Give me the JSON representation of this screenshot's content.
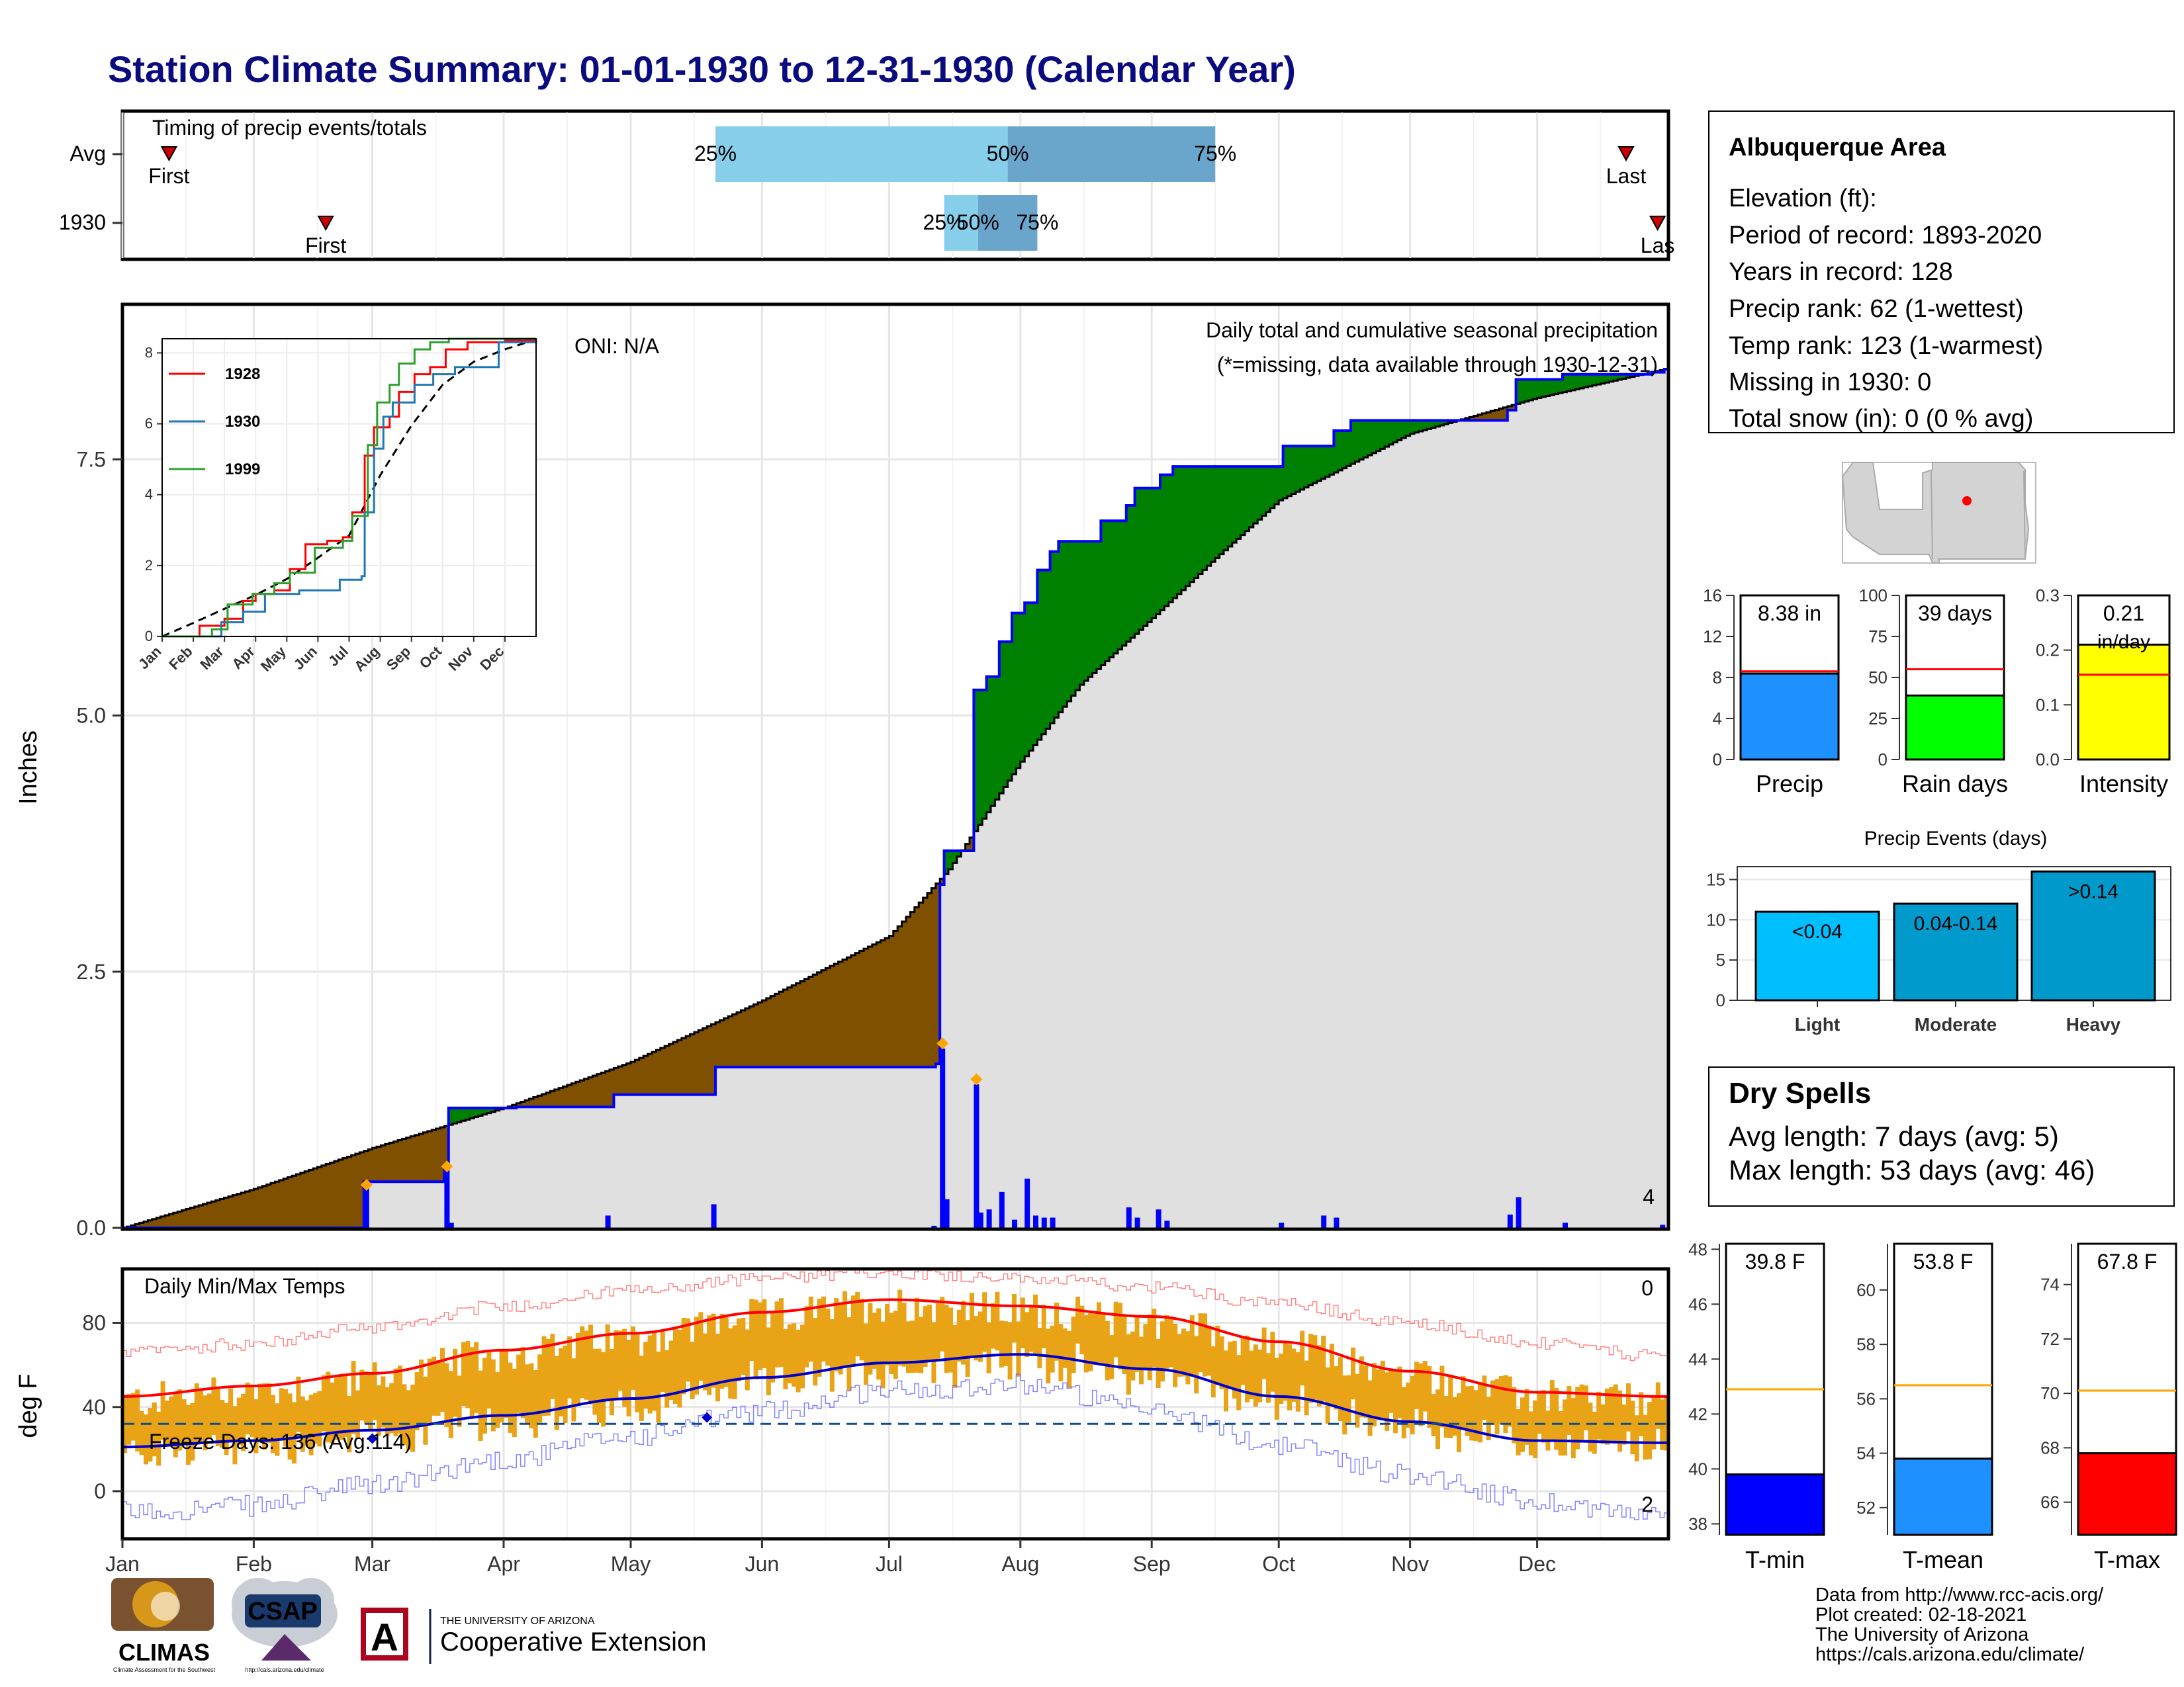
{
  "colors": {
    "title": "#0b0b80",
    "brown_deficit": "#7f5000",
    "green_surplus": "#008000",
    "normal_fill": "#e0e0e0",
    "precip_blue": "#0000ff",
    "light_blue": "#87ceeb",
    "mid_blue": "#6aa6cc",
    "orange_marker": "#ffa500",
    "temp_bar": "#e8a317",
    "red_line": "#ff0000",
    "blue_line": "#0000cd",
    "dry_spells_text": "#a52a2a",
    "precip_bar": "#1e90ff",
    "rain_days_bar": "#00ff00",
    "intensity_bar": "#ffff00",
    "light_bar": "#00bfff",
    "moderate_bar": "#009acd",
    "heavy_bar": "#0099cc",
    "tmin_bar": "#0000ff",
    "tmean_bar": "#1e90ff",
    "tmax_bar": "#ff0000"
  },
  "page": {
    "title": "Station Climate Summary: 01-01-1930 to 12-31-1930 (Calendar Year)",
    "footer": {
      "line1": "Data from http://www.rcc-acis.org/",
      "line2": "Plot created: 02-18-2021",
      "line3": "The University of Arizona",
      "line4": "https://cals.arizona.edu/climate/"
    },
    "logos": {
      "climas": "CLIMAS",
      "climas_sub": "Climate Assessment for the Southwest",
      "csap": "CSAP",
      "csap_url": "http://cals.arizona.edu/climate",
      "ua_small": "THE UNIVERSITY OF ARIZONA",
      "ua_big": "Cooperative Extension",
      "ua_letter": "A"
    }
  },
  "chart_data": [
    {
      "id": "timing",
      "type": "bar",
      "title": "Timing of precip events/totals",
      "categories": [
        "Avg",
        "1930"
      ],
      "first_label": "First",
      "last_label": "Last",
      "last_label_clipped": "Las",
      "pct_labels": [
        "25%",
        "50%",
        "75%"
      ],
      "avg": {
        "first": "1930-01-12",
        "p25": "1930-05-21",
        "p50": "1930-07-29",
        "p75": "1930-09-16",
        "last": "1930-12-22"
      },
      "y1930": {
        "first": "1930-02-18",
        "p25": "1930-07-14",
        "p50": "1930-07-22",
        "p75": "1930-08-05",
        "last": "1930-12-31"
      }
    },
    {
      "id": "precip",
      "type": "area",
      "title": "Daily total and cumulative seasonal precipitation",
      "subtitle": "(*=missing, data available through 1930-12-31)",
      "oni": "ONI: N/A",
      "ylabel": "Inches",
      "ylim": [
        0,
        9.0
      ],
      "yticks": [
        0.0,
        2.5,
        5.0,
        7.5
      ],
      "ytick_labels": [
        "0.0",
        "2.5",
        "5.0",
        "7.5"
      ],
      "months": [
        "Jan",
        "Feb",
        "Mar",
        "Apr",
        "May",
        "Jun",
        "Jul",
        "Aug",
        "Sep",
        "Oct",
        "Nov",
        "Dec"
      ],
      "cumulative_1930": [
        [
          "1930-01-01",
          0.0
        ],
        [
          "1930-02-26",
          0.0
        ],
        [
          "1930-02-27",
          0.45
        ],
        [
          "1930-03-17",
          0.45
        ],
        [
          "1930-03-18",
          0.6
        ],
        [
          "1930-03-19",
          1.17
        ],
        [
          "1930-04-03",
          1.17
        ],
        [
          "1930-04-04",
          1.18
        ],
        [
          "1930-04-26",
          1.18
        ],
        [
          "1930-04-27",
          1.3
        ],
        [
          "1930-05-20",
          1.3
        ],
        [
          "1930-05-21",
          1.57
        ],
        [
          "1930-07-12",
          1.6
        ],
        [
          "1930-07-13",
          3.35
        ],
        [
          "1930-07-14",
          3.68
        ],
        [
          "1930-07-20",
          3.68
        ],
        [
          "1930-07-21",
          5.25
        ],
        [
          "1930-07-24",
          5.38
        ],
        [
          "1930-07-27",
          5.72
        ],
        [
          "1930-07-30",
          6.0
        ],
        [
          "1930-08-02",
          6.1
        ],
        [
          "1930-08-05",
          6.42
        ],
        [
          "1930-08-08",
          6.6
        ],
        [
          "1930-08-10",
          6.7
        ],
        [
          "1930-08-18",
          6.7
        ],
        [
          "1930-08-20",
          6.9
        ],
        [
          "1930-08-26",
          7.05
        ],
        [
          "1930-08-28",
          7.22
        ],
        [
          "1930-09-03",
          7.35
        ],
        [
          "1930-09-06",
          7.43
        ],
        [
          "1930-10-01",
          7.43
        ],
        [
          "1930-10-02",
          7.63
        ],
        [
          "1930-10-14",
          7.78
        ],
        [
          "1930-10-18",
          7.88
        ],
        [
          "1930-11-24",
          7.98
        ],
        [
          "1930-11-26",
          8.28
        ],
        [
          "1930-12-07",
          8.33
        ],
        [
          "1930-12-28",
          8.35
        ],
        [
          "1930-12-31",
          8.38
        ]
      ],
      "normal_cumulative": [
        [
          "1930-01-01",
          0.0
        ],
        [
          "1930-02-01",
          0.38
        ],
        [
          "1930-03-01",
          0.78
        ],
        [
          "1930-04-01",
          1.17
        ],
        [
          "1930-05-01",
          1.62
        ],
        [
          "1930-06-01",
          2.22
        ],
        [
          "1930-07-01",
          2.85
        ],
        [
          "1930-07-15",
          3.5
        ],
        [
          "1930-08-01",
          4.55
        ],
        [
          "1930-08-15",
          5.3
        ],
        [
          "1930-09-01",
          5.95
        ],
        [
          "1930-09-15",
          6.5
        ],
        [
          "1930-10-01",
          7.1
        ],
        [
          "1930-11-01",
          7.75
        ],
        [
          "1930-12-01",
          8.1
        ],
        [
          "1930-12-31",
          8.38
        ]
      ],
      "daily_precip": [
        [
          "1930-02-27",
          0.45
        ],
        [
          "1930-03-18",
          0.6
        ],
        [
          "1930-03-19",
          0.05
        ],
        [
          "1930-04-25",
          0.12
        ],
        [
          "1930-05-20",
          0.23
        ],
        [
          "1930-07-11",
          0.02
        ],
        [
          "1930-07-13",
          1.75
        ],
        [
          "1930-07-14",
          0.28
        ],
        [
          "1930-07-21",
          1.4
        ],
        [
          "1930-07-22",
          0.15
        ],
        [
          "1930-07-24",
          0.18
        ],
        [
          "1930-07-27",
          0.35
        ],
        [
          "1930-07-30",
          0.08
        ],
        [
          "1930-08-02",
          0.48
        ],
        [
          "1930-08-04",
          0.12
        ],
        [
          "1930-08-06",
          0.1
        ],
        [
          "1930-08-08",
          0.1
        ],
        [
          "1930-08-26",
          0.2
        ],
        [
          "1930-08-28",
          0.1
        ],
        [
          "1930-09-02",
          0.18
        ],
        [
          "1930-09-04",
          0.07
        ],
        [
          "1930-10-01",
          0.05
        ],
        [
          "1930-10-11",
          0.12
        ],
        [
          "1930-10-14",
          0.1
        ],
        [
          "1930-11-24",
          0.13
        ],
        [
          "1930-11-26",
          0.3
        ],
        [
          "1930-12-07",
          0.05
        ],
        [
          "1930-12-30",
          0.03
        ]
      ],
      "extreme_markers": [
        [
          "1930-02-27",
          0.42
        ],
        [
          "1930-03-18",
          0.6
        ],
        [
          "1930-07-13",
          1.8
        ],
        [
          "1930-07-21",
          1.45
        ]
      ],
      "extreme_count": "4",
      "legend": null
    },
    {
      "id": "inset",
      "type": "line",
      "yticks": [
        0,
        2,
        4,
        6,
        8
      ],
      "ytick_labels": [
        "0",
        "2",
        "4",
        "6",
        "8"
      ],
      "xtick_labels": [
        "Jan",
        "Feb",
        "Mar",
        "Apr",
        "May",
        "Jun",
        "Jul",
        "Aug",
        "Sep",
        "Oct",
        "Nov",
        "Dec"
      ],
      "ylim": [
        0,
        8.4
      ],
      "series": [
        {
          "name": "1928",
          "color": "#ff0000",
          "points": [
            [
              0,
              0
            ],
            [
              1.2,
              0.3
            ],
            [
              2,
              0.5
            ],
            [
              2.6,
              1.0
            ],
            [
              3,
              1.2
            ],
            [
              3.6,
              1.3
            ],
            [
              4.1,
              1.9
            ],
            [
              4.6,
              2.6
            ],
            [
              5.3,
              2.7
            ],
            [
              5.8,
              2.8
            ],
            [
              6.1,
              3.5
            ],
            [
              6.5,
              5.1
            ],
            [
              6.8,
              5.9
            ],
            [
              7.3,
              6.2
            ],
            [
              7.6,
              6.9
            ],
            [
              8.1,
              7.4
            ],
            [
              8.6,
              7.6
            ],
            [
              9.1,
              8.1
            ],
            [
              9.8,
              8.3
            ],
            [
              11,
              8.35
            ],
            [
              12,
              8.4
            ]
          ]
        },
        {
          "name": "1930",
          "color": "#1f77b4",
          "points": [
            [
              0,
              0
            ],
            [
              1.9,
              0.4
            ],
            [
              2.6,
              0.7
            ],
            [
              3.3,
              1.2
            ],
            [
              4.4,
              1.3
            ],
            [
              5.7,
              1.6
            ],
            [
              6.4,
              1.7
            ],
            [
              6.5,
              3.5
            ],
            [
              6.8,
              5.3
            ],
            [
              7.1,
              6.2
            ],
            [
              7.4,
              6.6
            ],
            [
              8.1,
              7.1
            ],
            [
              8.7,
              7.4
            ],
            [
              9.4,
              7.6
            ],
            [
              10.8,
              8.3
            ],
            [
              12,
              8.4
            ]
          ]
        },
        {
          "name": "1999",
          "color": "#2ca02c",
          "points": [
            [
              0,
              0
            ],
            [
              1.6,
              0.2
            ],
            [
              2.1,
              0.9
            ],
            [
              2.9,
              1.2
            ],
            [
              3.6,
              1.5
            ],
            [
              4.1,
              1.8
            ],
            [
              4.9,
              2.5
            ],
            [
              5.8,
              2.7
            ],
            [
              6.1,
              3.4
            ],
            [
              6.6,
              5.4
            ],
            [
              6.9,
              6.6
            ],
            [
              7.3,
              7.1
            ],
            [
              7.6,
              7.7
            ],
            [
              8.1,
              8.1
            ],
            [
              8.6,
              8.3
            ],
            [
              9.2,
              8.4
            ],
            [
              12,
              8.4
            ]
          ]
        }
      ],
      "normal": [
        [
          0,
          0
        ],
        [
          1,
          0.38
        ],
        [
          2,
          0.78
        ],
        [
          3,
          1.17
        ],
        [
          4,
          1.62
        ],
        [
          5,
          2.22
        ],
        [
          6,
          2.85
        ],
        [
          7,
          4.55
        ],
        [
          8,
          5.95
        ],
        [
          9,
          7.1
        ],
        [
          10,
          7.75
        ],
        [
          11,
          8.1
        ],
        [
          12,
          8.38
        ]
      ]
    },
    {
      "id": "temps",
      "type": "bar",
      "title": "Daily Min/Max Temps",
      "ylabel": "deg F",
      "ylim": [
        -22,
        105
      ],
      "yticks": [
        0,
        40,
        80
      ],
      "ytick_labels": [
        "0",
        "40",
        "80"
      ],
      "freeze_line": 32,
      "freeze_text": "Freeze Days: 136 (Avg:114)",
      "hot_count": "0",
      "cold_count": "2",
      "normal_max_anchors": [
        [
          0,
          45
        ],
        [
          31,
          50
        ],
        [
          59,
          56
        ],
        [
          90,
          67
        ],
        [
          120,
          75
        ],
        [
          151,
          85
        ],
        [
          181,
          91
        ],
        [
          212,
          88
        ],
        [
          243,
          83
        ],
        [
          273,
          71
        ],
        [
          304,
          57
        ],
        [
          334,
          47
        ],
        [
          364,
          45
        ]
      ],
      "normal_min_anchors": [
        [
          0,
          21
        ],
        [
          31,
          24
        ],
        [
          59,
          29
        ],
        [
          90,
          36
        ],
        [
          120,
          44
        ],
        [
          151,
          54
        ],
        [
          181,
          61
        ],
        [
          212,
          65
        ],
        [
          243,
          58
        ],
        [
          273,
          45
        ],
        [
          304,
          33
        ],
        [
          334,
          24
        ],
        [
          364,
          23
        ]
      ],
      "record_max_anchors": [
        [
          0,
          66
        ],
        [
          31,
          70
        ],
        [
          59,
          78
        ],
        [
          90,
          88
        ],
        [
          120,
          95
        ],
        [
          151,
          101
        ],
        [
          181,
          104
        ],
        [
          212,
          101
        ],
        [
          243,
          97
        ],
        [
          273,
          89
        ],
        [
          304,
          80
        ],
        [
          334,
          70
        ],
        [
          364,
          64
        ]
      ],
      "record_min_anchors": [
        [
          0,
          -10
        ],
        [
          31,
          -7
        ],
        [
          59,
          3
        ],
        [
          90,
          15
        ],
        [
          120,
          26
        ],
        [
          151,
          38
        ],
        [
          181,
          48
        ],
        [
          212,
          51
        ],
        [
          243,
          38
        ],
        [
          273,
          22
        ],
        [
          304,
          8
        ],
        [
          334,
          -5
        ],
        [
          364,
          -12
        ]
      ],
      "diamonds": [
        [
          "1930-03-01",
          25
        ],
        [
          "1930-05-19",
          35
        ]
      ]
    },
    {
      "id": "station",
      "type": "table",
      "title": "Albuquerque Area",
      "lines": [
        "Elevation (ft):",
        "Period of record: 1893-2020",
        "Years in record: 128",
        "Precip rank: 62 (1-wettest)",
        "Temp rank: 123 (1-warmest)",
        "Missing in 1930: 0",
        "Total snow (in): 0 (0 % avg)"
      ]
    },
    {
      "id": "precip_summary",
      "type": "bar",
      "panels": [
        {
          "name": "Precip",
          "value": 8.38,
          "label": "8.38 in",
          "avg": 8.6,
          "ylim": [
            0,
            16
          ],
          "yticks": [
            0,
            4,
            8,
            12,
            16
          ],
          "color": "#1e90ff"
        },
        {
          "name": "Rain days",
          "value": 39,
          "label": "39 days",
          "avg": 55,
          "ylim": [
            0,
            100
          ],
          "yticks": [
            0,
            25,
            50,
            75,
            100
          ],
          "color": "#00ff00"
        },
        {
          "name": "Intensity",
          "value": 0.21,
          "label": "0.21",
          "label2": "in/day",
          "avg": 0.155,
          "ylim": [
            0,
            0.3
          ],
          "yticks": [
            0.0,
            0.1,
            0.2,
            0.3
          ],
          "ytick_labels": [
            "0.0",
            "0.1",
            "0.2",
            "0.3"
          ],
          "color": "#ffff00"
        }
      ]
    },
    {
      "id": "precip_events",
      "type": "bar",
      "title": "Precip Events (days)",
      "categories": [
        "Light",
        "Moderate",
        "Heavy"
      ],
      "bar_labels": [
        "<0.04",
        "0.04-0.14",
        ">0.14"
      ],
      "values": [
        11,
        12,
        16
      ],
      "ylim": [
        0,
        16.6
      ],
      "yticks": [
        0,
        5,
        10,
        15
      ]
    },
    {
      "id": "dry_spells",
      "type": "table",
      "title": "Dry Spells",
      "lines": [
        "Avg length: 7 days (avg: 5)",
        "Max length: 53 days (avg: 46)"
      ]
    },
    {
      "id": "temp_summary",
      "type": "bar",
      "panels": [
        {
          "name": "T-min",
          "value": 39.8,
          "label": "39.8 F",
          "avg": 42.9,
          "ylim": [
            37.6,
            48.2
          ],
          "yticks": [
            38,
            40,
            42,
            44,
            46,
            48
          ],
          "color": "#0000ff"
        },
        {
          "name": "T-mean",
          "value": 53.8,
          "label": "53.8 F",
          "avg": 56.5,
          "ylim": [
            51.0,
            61.7
          ],
          "yticks": [
            52,
            54,
            56,
            58,
            60
          ],
          "color": "#1e90ff"
        },
        {
          "name": "T-max",
          "value": 67.8,
          "label": "67.8 F",
          "avg": 70.1,
          "ylim": [
            64.8,
            75.5
          ],
          "yticks": [
            66,
            68,
            70,
            72,
            74
          ],
          "color": "#ff0000"
        }
      ]
    }
  ]
}
